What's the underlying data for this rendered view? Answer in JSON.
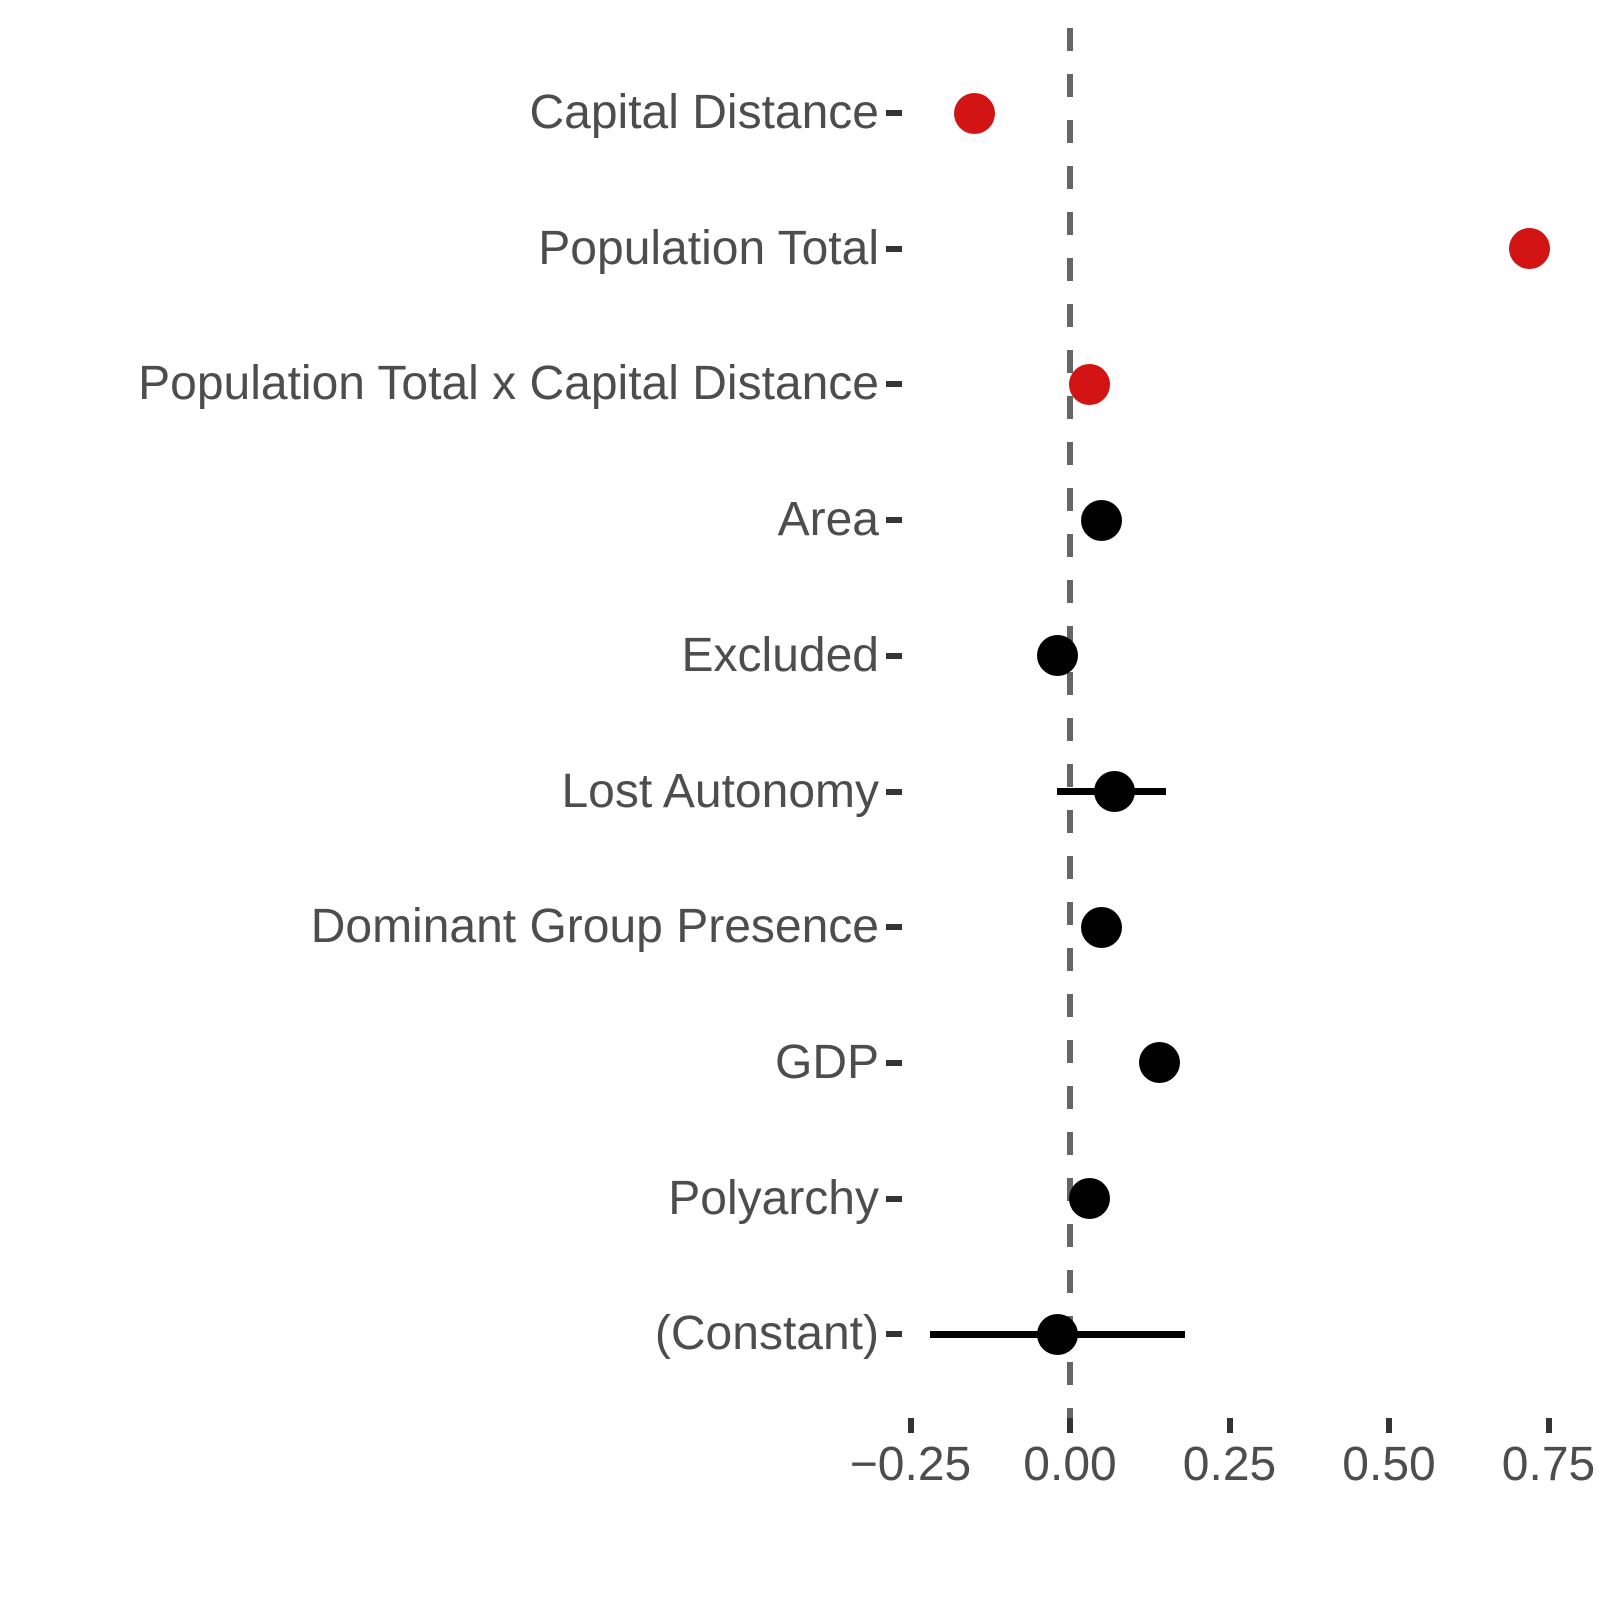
{
  "chart_data": {
    "type": "scatter",
    "subtype": "dot-and-whisker coefficient plot",
    "orientation": "horizontal",
    "title": "",
    "xlabel": "",
    "ylabel": "",
    "grid": false,
    "legend": false,
    "background": "#FFFFFF",
    "xlim": [
      -0.265,
      0.83
    ],
    "x_ticks": [
      -0.25,
      0.0,
      0.25,
      0.5,
      0.75
    ],
    "x_tick_labels": [
      "−0.25",
      "0.00",
      "0.25",
      "0.50",
      "0.75"
    ],
    "zero_line": {
      "x": 0.0,
      "style": "dashed",
      "color": "#666666"
    },
    "colors": {
      "significant_point": "#D21414",
      "nonsignificant_point": "#000000",
      "axis_text": "#4D4D4D",
      "tick_mark": "#333333"
    },
    "categories": [
      "Capital Distance",
      "Population Total",
      "Population Total x Capital Distance",
      "Area",
      "Excluded",
      "Lost Autonomy",
      "Dominant Group Presence",
      "GDP",
      "Polyarchy",
      "(Constant)"
    ],
    "points": [
      {
        "label": "Capital Distance",
        "estimate": -0.15,
        "ci_low": null,
        "ci_high": null,
        "color": "red"
      },
      {
        "label": "Population Total",
        "estimate": 0.72,
        "ci_low": null,
        "ci_high": null,
        "color": "red"
      },
      {
        "label": "Population Total x Capital Distance",
        "estimate": 0.03,
        "ci_low": null,
        "ci_high": null,
        "color": "red"
      },
      {
        "label": "Area",
        "estimate": 0.05,
        "ci_low": null,
        "ci_high": null,
        "color": "black"
      },
      {
        "label": "Excluded",
        "estimate": -0.02,
        "ci_low": null,
        "ci_high": null,
        "color": "black"
      },
      {
        "label": "Lost Autonomy",
        "estimate": 0.07,
        "ci_low": -0.02,
        "ci_high": 0.15,
        "color": "black"
      },
      {
        "label": "Dominant Group Presence",
        "estimate": 0.05,
        "ci_low": null,
        "ci_high": null,
        "color": "black"
      },
      {
        "label": "GDP",
        "estimate": 0.14,
        "ci_low": null,
        "ci_high": null,
        "color": "black"
      },
      {
        "label": "Polyarchy",
        "estimate": 0.03,
        "ci_low": null,
        "ci_high": null,
        "color": "black"
      },
      {
        "label": "(Constant)",
        "estimate": -0.02,
        "ci_low": -0.22,
        "ci_high": 0.18,
        "color": "black"
      }
    ]
  }
}
